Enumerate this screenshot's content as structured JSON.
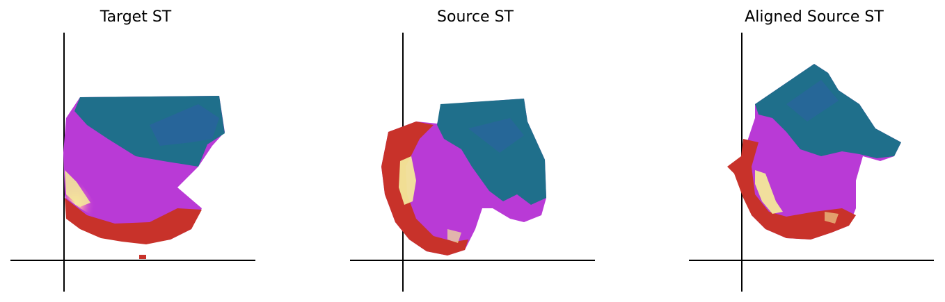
{
  "panels": [
    {
      "title": "Target ST"
    },
    {
      "title": "Source ST"
    },
    {
      "title": "Aligned Source ST"
    }
  ],
  "colors": {
    "teal": "#1f6f8b",
    "violet": "#8a2be2",
    "magenta": "#c43ad8",
    "pink": "#e35fb9",
    "red": "#c8322a",
    "yellow": "#f3e89a",
    "axis": "#000000"
  }
}
